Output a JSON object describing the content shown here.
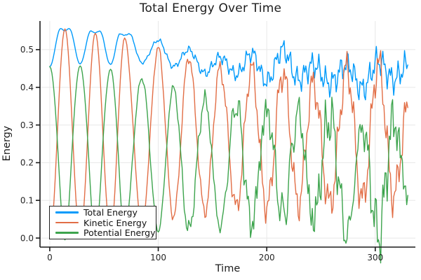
{
  "figure": {
    "title": "Total Energy Over Time",
    "xlabel": "Time",
    "ylabel": "Energy"
  },
  "legend": {
    "position": "bottom-left",
    "entries": [
      {
        "label": "Total Energy",
        "color": "#009AFA"
      },
      {
        "label": "Kinetic Energy",
        "color": "#E26E46"
      },
      {
        "label": "Potential Energy",
        "color": "#3DA44D"
      }
    ]
  },
  "chart_data": {
    "type": "line",
    "title": "Total Energy Over Time",
    "xlabel": "Time",
    "ylabel": "Energy",
    "grid": true,
    "legend_position": "bottom-left",
    "xlim": [
      -9,
      337
    ],
    "ylim": [
      -0.024,
      0.576
    ],
    "xticks": {
      "values": [
        0,
        100,
        200,
        300
      ],
      "labels": [
        "0",
        "100",
        "200",
        "300"
      ]
    },
    "yticks": {
      "values": [
        0.0,
        0.1,
        0.2,
        0.3,
        0.4,
        0.5
      ],
      "labels": [
        "0.0",
        "0.1",
        "0.2",
        "0.3",
        "0.4",
        "0.5"
      ]
    },
    "sampling": {
      "t_start": 0,
      "t_end": 330,
      "dt": 1
    },
    "series": [
      {
        "name": "Total Energy",
        "color": "#009AFA",
        "keypoints": {
          "t": [
            0,
            10,
            14,
            18,
            28,
            38,
            42,
            46,
            56,
            65,
            69,
            73,
            85,
            100,
            114,
            128,
            143,
            157,
            172,
            186,
            200,
            215,
            229,
            243,
            258,
            274,
            288,
            303,
            317,
            330
          ],
          "v": [
            0.455,
            0.556,
            0.55,
            0.556,
            0.462,
            0.55,
            0.544,
            0.55,
            0.46,
            0.543,
            0.537,
            0.543,
            0.465,
            0.525,
            0.455,
            0.5,
            0.437,
            0.48,
            0.434,
            0.49,
            0.415,
            0.5,
            0.42,
            0.46,
            0.41,
            0.46,
            0.395,
            0.47,
            0.42,
            0.46
          ]
        },
        "noise": {
          "f1": 0.342,
          "p1": 2.4,
          "w1": 0.6,
          "f2": 0.151,
          "p2": 5.1,
          "w2": 0.8,
          "t": [
            0,
            70,
            95,
            125,
            155,
            185,
            215,
            250,
            330
          ],
          "amp": [
            0,
            0.0015,
            0.004,
            0.008,
            0.013,
            0.019,
            0.026,
            0.03,
            0.032
          ]
        }
      },
      {
        "name": "Kinetic Energy",
        "color": "#E26E46",
        "keypoints": {
          "t": [
            0,
            14,
            28,
            42,
            56,
            69,
            85,
            100,
            114,
            128,
            143,
            157,
            172,
            186,
            200,
            215,
            229,
            243,
            258,
            274,
            288,
            303,
            317,
            330
          ],
          "v": [
            0.0,
            0.555,
            0.005,
            0.545,
            0.012,
            0.53,
            0.04,
            0.505,
            0.055,
            0.48,
            0.07,
            0.45,
            0.08,
            0.45,
            0.08,
            0.44,
            0.09,
            0.41,
            0.09,
            0.45,
            0.1,
            0.46,
            0.11,
            0.34
          ]
        },
        "noise": {
          "f1": 0.325,
          "p1": 0.8,
          "w1": 0.6,
          "f2": 0.128,
          "p2": 2.0,
          "w2": 0.8,
          "t": [
            0,
            70,
            95,
            125,
            155,
            185,
            215,
            250,
            330
          ],
          "amp": [
            0,
            0.002,
            0.006,
            0.012,
            0.02,
            0.03,
            0.038,
            0.042,
            0.046
          ]
        }
      },
      {
        "name": "Potential Energy",
        "color": "#3DA44D",
        "derived": "total_minus_kinetic"
      }
    ]
  },
  "style": {
    "spine_color": "#1a1a1a",
    "grid_color": "#e8e8e8",
    "tick_label_color": "#262626"
  }
}
